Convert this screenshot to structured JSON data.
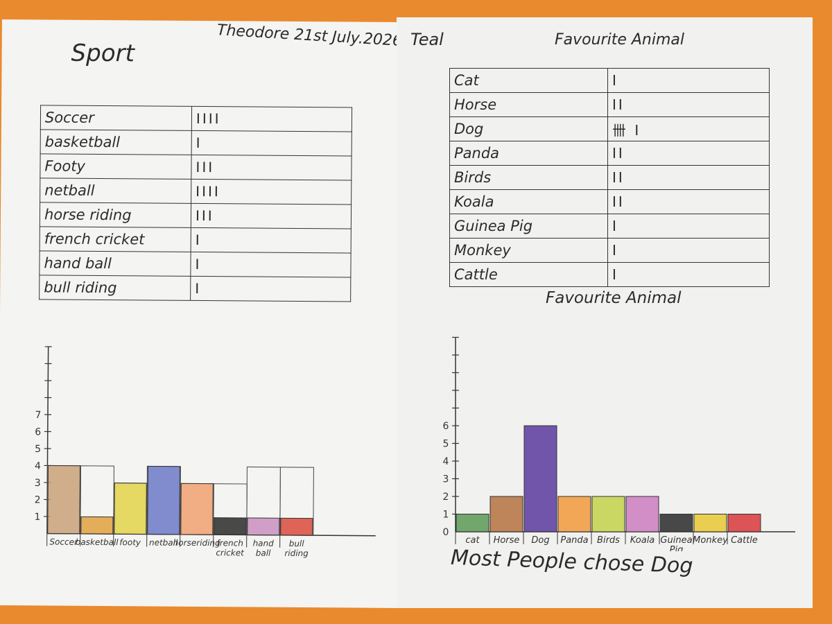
{
  "left_page": {
    "title": "Sport",
    "author_date": "Theodore 21st July.2026",
    "table": [
      {
        "label": "Soccer",
        "tally": "IIII"
      },
      {
        "label": "basketball",
        "tally": "I"
      },
      {
        "label": "Footy",
        "tally": "III"
      },
      {
        "label": "netball",
        "tally": "IIII"
      },
      {
        "label": "horse riding",
        "tally": "III"
      },
      {
        "label": "french cricket",
        "tally": "I"
      },
      {
        "label": "hand ball",
        "tally": "I"
      },
      {
        "label": "bull riding",
        "tally": "I"
      }
    ]
  },
  "right_page": {
    "title_left": "Teal",
    "table_title": "Favourite Animal",
    "graph_title": "Favourite Animal",
    "conclusion": "Most People chose Dog",
    "table": [
      {
        "label": "Cat",
        "tally": "I"
      },
      {
        "label": "Horse",
        "tally": "II"
      },
      {
        "label": "Dog",
        "tally": "卌 I"
      },
      {
        "label": "Panda",
        "tally": "II"
      },
      {
        "label": "Birds",
        "tally": "II"
      },
      {
        "label": "Koala",
        "tally": "II"
      },
      {
        "label": "Guinea Pig",
        "tally": "I"
      },
      {
        "label": "Monkey",
        "tally": "I"
      },
      {
        "label": "Cattle",
        "tally": "I"
      }
    ]
  },
  "chart_data": [
    {
      "type": "bar",
      "title": "",
      "categories": [
        "Soccer",
        "basketball",
        "footy",
        "netball",
        "horseriding",
        "french cricket",
        "hand ball",
        "bull riding"
      ],
      "values": [
        4,
        1,
        3,
        4,
        3,
        1,
        1,
        1
      ],
      "outline_values": [
        4,
        4,
        3,
        4,
        3,
        3,
        4,
        4
      ],
      "colors": [
        "#c9a17a",
        "#e0a040",
        "#e2d24a",
        "#6b79c8",
        "#f0a070",
        "#2a2a2a",
        "#c98fc0",
        "#d94a3c"
      ],
      "yticks": [
        "1",
        "2",
        "3",
        "4",
        "5",
        "6",
        "7"
      ],
      "ylim": [
        0,
        11
      ],
      "grid": false
    },
    {
      "type": "bar",
      "title": "Favourite Animal",
      "categories": [
        "cat",
        "Horse",
        "Dog",
        "Panda",
        "Birds",
        "Koala",
        "Guinea Pig",
        "Monkey",
        "Cattle"
      ],
      "values": [
        1,
        2,
        6,
        2,
        2,
        2,
        1,
        1,
        1
      ],
      "colors": [
        "#5a9a55",
        "#b5713f",
        "#5b3a9e",
        "#f29a3c",
        "#c3d24a",
        "#cc7cc0",
        "#2a2a2a",
        "#e8c832",
        "#d8383a"
      ],
      "yticks": [
        "0",
        "1",
        "2",
        "3",
        "4",
        "5",
        "6"
      ],
      "ylim": [
        0,
        11
      ],
      "grid": false
    }
  ]
}
